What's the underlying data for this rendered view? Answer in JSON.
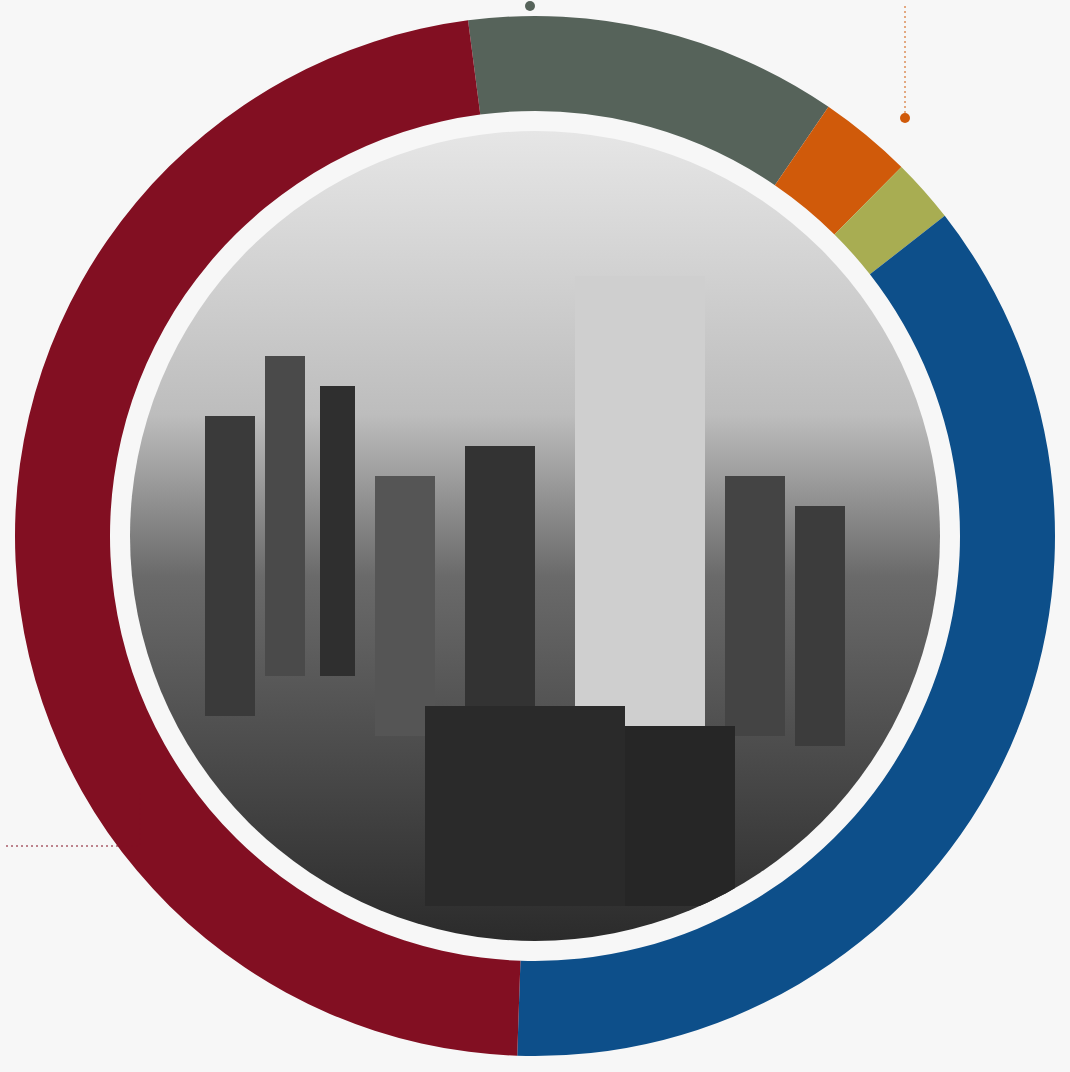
{
  "chart_data": {
    "type": "pie",
    "values": [
      11.6,
      2.9,
      2,
      36.1,
      47.4
    ],
    "colors": [
      "#56635a",
      "#d05a0a",
      "#a8ad52",
      "#0d4f8a",
      "#820f22"
    ],
    "data_labels": false
  }
}
